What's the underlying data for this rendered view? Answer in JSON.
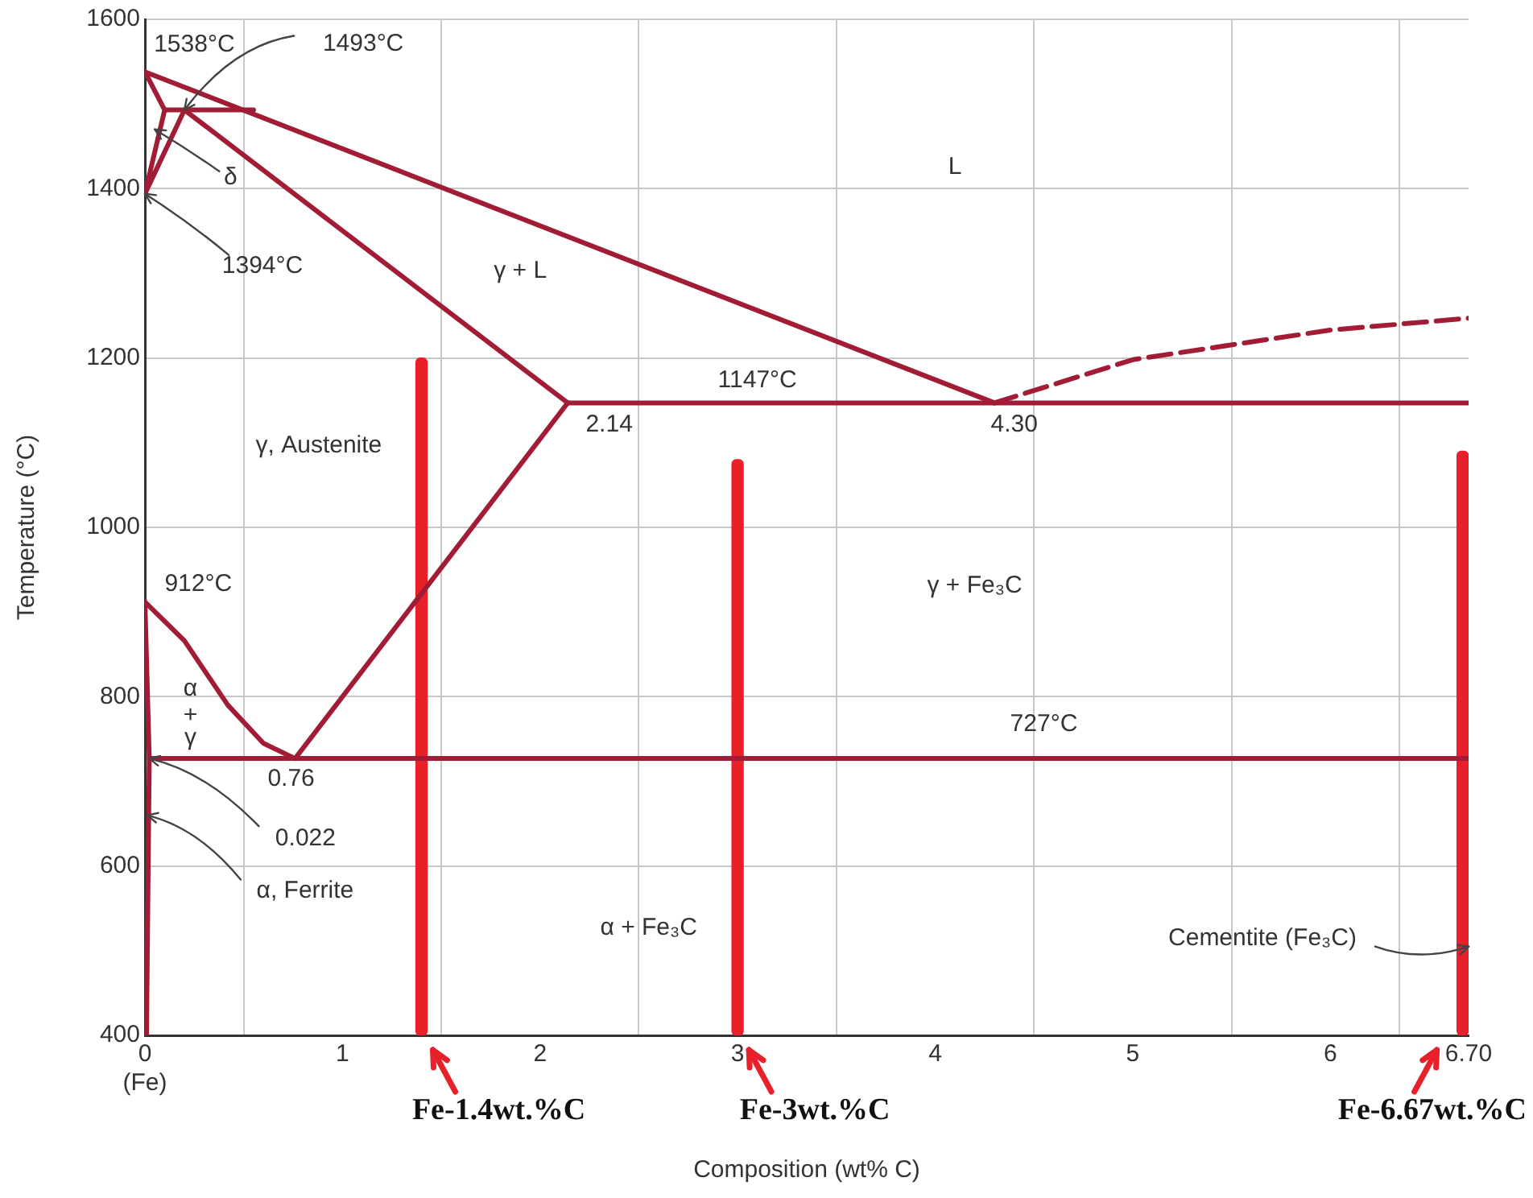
{
  "chart_data": {
    "type": "line",
    "xlabel": "Composition (wt% C)",
    "ylabel": "Temperature (°C)",
    "xlim": [
      0,
      6.7
    ],
    "ylim": [
      400,
      1600
    ],
    "xticks": [
      {
        "value": 0,
        "label": "0\n(Fe)"
      },
      1,
      2,
      3,
      4,
      5,
      6,
      {
        "value": 6.7,
        "label": "6.70"
      }
    ],
    "yticks": [
      400,
      600,
      800,
      1000,
      1200,
      1400,
      1600
    ],
    "grid": true,
    "legend": false,
    "marker": "none",
    "line_style": "solid",
    "series": [
      {
        "color": "#a31c36",
        "x": [
          0,
          4.3
        ],
        "values": [
          1538,
          1147
        ]
      },
      {
        "color": "#a31c36",
        "x": [
          4.3,
          5,
          6,
          6.7
        ],
        "values": [
          1147,
          1198,
          1233,
          1247
        ],
        "line_style": "dashed"
      },
      {
        "color": "#a31c36",
        "x": [
          0,
          0.1,
          0,
          0.2,
          2.14
        ],
        "values": [
          1538,
          1493,
          1394,
          1493,
          1147
        ]
      },
      {
        "color": "#a31c36",
        "x": [
          0.1,
          0.55
        ],
        "values": [
          1493,
          1493
        ]
      },
      {
        "color": "#a31c36",
        "x": [
          2.14,
          6.7
        ],
        "values": [
          1147,
          1147
        ]
      },
      {
        "color": "#a31c36",
        "x": [
          2.14,
          0.76
        ],
        "values": [
          1147,
          727
        ]
      },
      {
        "color": "#a31c36",
        "x": [
          0,
          0.2,
          0.42,
          0.6,
          0.76
        ],
        "values": [
          912,
          866,
          790,
          745,
          727
        ]
      },
      {
        "color": "#a31c36",
        "x": [
          0,
          0.022,
          0.008
        ],
        "values": [
          912,
          727,
          400
        ]
      },
      {
        "color": "#a31c36",
        "x": [
          0.022,
          6.7
        ],
        "values": [
          727,
          727
        ]
      },
      {
        "type": "bar",
        "color": "#e8202a",
        "x": [
          1.4,
          3,
          6.67
        ],
        "base": [
          400,
          400,
          400
        ],
        "values": [
          800,
          680,
          690
        ]
      }
    ],
    "annotations": [
      "1538°C",
      {
        "text": "1493°C",
        "x": 0.2,
        "y": 1493
      },
      {
        "text": "δ",
        "x": 0.05,
        "y": 1470
      },
      {
        "text": "1394°C",
        "x": 0,
        "y": 1394
      },
      "L",
      "γ + L",
      "1147°C",
      "2.14",
      "4.30",
      "γ, Austenite",
      "912°C",
      "γ + Fe₃C",
      "α",
      "+",
      "γ",
      "727°C",
      "0.76",
      {
        "text": "0.022",
        "x": 0.022,
        "y": 727
      },
      {
        "text": "α, Ferrite",
        "x": 0.012,
        "y": 660
      },
      "α + Fe₃C",
      {
        "text": "Cementite (Fe₃C)",
        "x": 6.7,
        "y": 505
      },
      "Fe-1.4wt.%C",
      "Fe-3wt.%C",
      "Fe-6.67wt.%C"
    ]
  }
}
